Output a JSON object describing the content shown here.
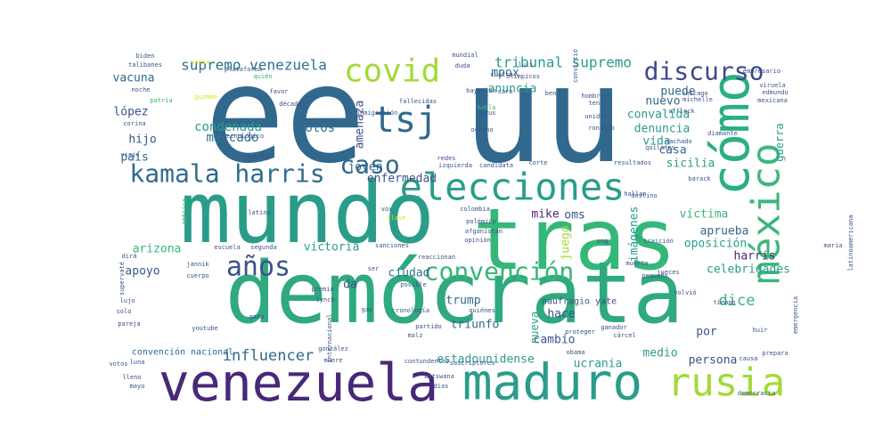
{
  "chart_data": {
    "type": "wordcloud",
    "background": "#ffffff",
    "palette": {
      "purple": "#440154",
      "indigo": "#3b528b",
      "blue": "#31688e",
      "teal": "#21918c",
      "green": "#35b779",
      "lime": "#90d743",
      "yellow": "#d5e21a"
    },
    "words": [
      {
        "text": "ee",
        "weight": 100,
        "color": "#31688e"
      },
      {
        "text": "uu",
        "weight": 88,
        "color": "#31688e"
      },
      {
        "text": "mundo",
        "weight": 62,
        "color": "#2a9d8a"
      },
      {
        "text": "tras",
        "weight": 62,
        "color": "#35b779"
      },
      {
        "text": "demócrata",
        "weight": 60,
        "color": "#2fa97f"
      },
      {
        "text": "venezuela",
        "weight": 38,
        "color": "#482878"
      },
      {
        "text": "maduro",
        "weight": 38,
        "color": "#2a9d8a"
      },
      {
        "text": "cómo",
        "weight": 36,
        "color": "#2ab07f"
      },
      {
        "text": "elecciones",
        "weight": 28,
        "color": "#2a9d8a"
      },
      {
        "text": "méxico",
        "weight": 28,
        "color": "#3db67a"
      },
      {
        "text": "rusia",
        "weight": 28,
        "color": "#a2da37"
      },
      {
        "text": "tsj",
        "weight": 26,
        "color": "#31688e"
      },
      {
        "text": "covid",
        "weight": 24,
        "color": "#a2da37"
      },
      {
        "text": "kamala harris",
        "weight": 20,
        "color": "#2f6b8e"
      },
      {
        "text": "años",
        "weight": 20,
        "color": "#3b528b"
      },
      {
        "text": "caso",
        "weight": 18,
        "color": "#31688e"
      },
      {
        "text": "convención",
        "weight": 18,
        "color": "#35b779"
      },
      {
        "text": "discurso",
        "weight": 18,
        "color": "#3e4989"
      },
      {
        "text": "supremo venezuela",
        "weight": 11,
        "color": "#2c728e"
      },
      {
        "text": "tribunal supremo",
        "weight": 11,
        "color": "#2a9d8a"
      },
      {
        "text": "vacuna",
        "weight": 9,
        "color": "#31688e"
      },
      {
        "text": "lópez",
        "weight": 9,
        "color": "#3b528b"
      },
      {
        "text": "hijo",
        "weight": 9,
        "color": "#3b528b"
      },
      {
        "text": "condenada",
        "weight": 9,
        "color": "#2a9d8a"
      },
      {
        "text": "mercado",
        "weight": 9,
        "color": "#2c728e"
      },
      {
        "text": "fotos",
        "weight": 9,
        "color": "#2c728e"
      },
      {
        "text": "amenaza",
        "weight": 9,
        "color": "#3b528b"
      },
      {
        "text": "mpox",
        "weight": 9,
        "color": "#31688e"
      },
      {
        "text": "anuncia",
        "weight": 9,
        "color": "#2a9d8a"
      },
      {
        "text": "joven",
        "weight": 9,
        "color": "#31688e"
      },
      {
        "text": "país",
        "weight": 9,
        "color": "#31688e"
      },
      {
        "text": "enfermedad",
        "weight": 9,
        "color": "#3b528b"
      },
      {
        "text": "convalida",
        "weight": 9,
        "color": "#2a9d8a"
      },
      {
        "text": "nuevo",
        "weight": 8,
        "color": "#31688e"
      },
      {
        "text": "puede",
        "weight": 8,
        "color": "#31688e"
      },
      {
        "text": "denuncia",
        "weight": 8,
        "color": "#2a9d8a"
      },
      {
        "text": "vida",
        "weight": 8,
        "color": "#2a9d8a"
      },
      {
        "text": "casa",
        "weight": 8,
        "color": "#31688e"
      },
      {
        "text": "sicilia",
        "weight": 8,
        "color": "#2a9d8a"
      },
      {
        "text": "guerra",
        "weight": 8,
        "color": "#2a9d8a"
      },
      {
        "text": "víctima",
        "weight": 9,
        "color": "#3db67a"
      },
      {
        "text": "oms",
        "weight": 9,
        "color": "#3b528b"
      },
      {
        "text": "mike",
        "weight": 8,
        "color": "#482878"
      },
      {
        "text": "imágenes",
        "weight": 8,
        "color": "#2a9d8a"
      },
      {
        "text": "juego",
        "weight": 8,
        "color": "#a2da37"
      },
      {
        "text": "aprueba",
        "weight": 8,
        "color": "#31688e"
      },
      {
        "text": "oposición",
        "weight": 9,
        "color": "#2a9d8a"
      },
      {
        "text": "harris",
        "weight": 8,
        "color": "#482878"
      },
      {
        "text": "celebridades",
        "weight": 8,
        "color": "#2a9d8a"
      },
      {
        "text": "arizona",
        "weight": 9,
        "color": "#35b779"
      },
      {
        "text": "victoria",
        "weight": 9,
        "color": "#2a9d8a"
      },
      {
        "text": "ciudad",
        "weight": 9,
        "color": "#2c728e"
      },
      {
        "text": "apoyo",
        "weight": 9,
        "color": "#3b528b"
      },
      {
        "text": "da",
        "weight": 8,
        "color": "#3b528b"
      },
      {
        "text": "dice",
        "weight": 11,
        "color": "#35b779"
      },
      {
        "text": "trump",
        "weight": 9,
        "color": "#31688e"
      },
      {
        "text": "triunfo",
        "weight": 9,
        "color": "#31688e"
      },
      {
        "text": "hace",
        "weight": 9,
        "color": "#3b528b"
      },
      {
        "text": "cambio",
        "weight": 8,
        "color": "#3b528b"
      },
      {
        "text": "nueva",
        "weight": 8,
        "color": "#2a9d8a"
      },
      {
        "text": "por",
        "weight": 9,
        "color": "#3b528b"
      },
      {
        "text": "influencer",
        "weight": 11,
        "color": "#31688e"
      },
      {
        "text": "estadounidense",
        "weight": 9,
        "color": "#2a9d8a"
      },
      {
        "text": "ucrania",
        "weight": 8,
        "color": "#2a9d8a"
      },
      {
        "text": "medio",
        "weight": 8,
        "color": "#2a9d8a"
      },
      {
        "text": "persona",
        "weight": 8,
        "color": "#3b528b"
      },
      {
        "text": "naufragio yate",
        "weight": 6,
        "color": "#3b528b"
      },
      {
        "text": "convención nacional",
        "weight": 6,
        "color": "#31688e"
      },
      {
        "text": "biden",
        "weight": 4,
        "color": "#3b528b"
      },
      {
        "text": "talibanes",
        "weight": 4,
        "color": "#3b528b"
      },
      {
        "text": "vuelo",
        "weight": 4,
        "color": "#d5e21a"
      },
      {
        "text": "plataforma",
        "weight": 4,
        "color": "#3b528b"
      },
      {
        "text": "quién",
        "weight": 4,
        "color": "#35b779"
      },
      {
        "text": "mundial",
        "weight": 4,
        "color": "#3b528b"
      },
      {
        "text": "duda",
        "weight": 4,
        "color": "#3b528b"
      },
      {
        "text": "olímpicos",
        "weight": 4,
        "color": "#3b528b"
      },
      {
        "text": "noche",
        "weight": 4,
        "color": "#3b528b"
      },
      {
        "text": "patria",
        "weight": 4,
        "color": "#35b779"
      },
      {
        "text": "guzmán",
        "weight": 4,
        "color": "#d5e21a"
      },
      {
        "text": "favor",
        "weight": 4,
        "color": "#3b528b"
      },
      {
        "text": "décadas",
        "weight": 4,
        "color": "#3b528b"
      },
      {
        "text": "inmigración",
        "weight": 4,
        "color": "#3b528b"
      },
      {
        "text": "fallecidas",
        "weight": 4,
        "color": "#3b528b"
      },
      {
        "text": "bayesian",
        "weight": 4,
        "color": "#3b528b"
      },
      {
        "text": "caro",
        "weight": 4,
        "color": "#3b528b"
      },
      {
        "text": "habla",
        "weight": 4,
        "color": "#35b779"
      },
      {
        "text": "virus",
        "weight": 4,
        "color": "#3b528b"
      },
      {
        "text": "océano",
        "weight": 4,
        "color": "#3b528b"
      },
      {
        "text": "ben",
        "weight": 4,
        "color": "#3b528b"
      },
      {
        "text": "hombre",
        "weight": 4,
        "color": "#3b528b"
      },
      {
        "text": "tener",
        "weight": 4,
        "color": "#3b528b"
      },
      {
        "text": "unidos",
        "weight": 4,
        "color": "#3b528b"
      },
      {
        "text": "ronaldo",
        "weight": 4,
        "color": "#3b528b"
      },
      {
        "text": "chicago",
        "weight": 4,
        "color": "#3b528b"
      },
      {
        "text": "michelle",
        "weight": 4,
        "color": "#3b528b"
      },
      {
        "text": "viruela",
        "weight": 4,
        "color": "#3b528b"
      },
      {
        "text": "edmundo",
        "weight": 4,
        "color": "#3b528b"
      },
      {
        "text": "mexicana",
        "weight": 4,
        "color": "#3b528b"
      },
      {
        "text": "empresario",
        "weight": 4,
        "color": "#3b528b"
      },
      {
        "text": "luis",
        "weight": 4,
        "color": "#3b528b"
      },
      {
        "text": "affleck",
        "weight": 4,
        "color": "#3b528b"
      },
      {
        "text": "machado",
        "weight": 4,
        "color": "#3b528b"
      },
      {
        "text": "quilates",
        "weight": 4,
        "color": "#3b528b"
      },
      {
        "text": "diamante",
        "weight": 4,
        "color": "#3b528b"
      },
      {
        "text": "corina",
        "weight": 4,
        "color": "#3b528b"
      },
      {
        "text": "tecnológico",
        "weight": 4,
        "color": "#3b528b"
      },
      {
        "text": "muerto",
        "weight": 4,
        "color": "#3b528b"
      },
      {
        "text": "viaje",
        "weight": 4,
        "color": "#3b528b"
      },
      {
        "text": "redes",
        "weight": 4,
        "color": "#3b528b"
      },
      {
        "text": "izquierda",
        "weight": 4,
        "color": "#3b528b"
      },
      {
        "text": "candidata",
        "weight": 4,
        "color": "#3b528b"
      },
      {
        "text": "corte",
        "weight": 4,
        "color": "#3b528b"
      },
      {
        "text": "resultados",
        "weight": 4,
        "color": "#3b528b"
      },
      {
        "text": "destino",
        "weight": 4,
        "color": "#3b528b"
      },
      {
        "text": "hallan",
        "weight": 4,
        "color": "#3b528b"
      },
      {
        "text": "barack",
        "weight": 4,
        "color": "#3b528b"
      },
      {
        "text": "vox",
        "weight": 4,
        "color": "#3b528b"
      },
      {
        "text": "colombia",
        "weight": 4,
        "color": "#3b528b"
      },
      {
        "text": "latina",
        "weight": 4,
        "color": "#3b528b"
      },
      {
        "text": "clave",
        "weight": 4,
        "color": "#d5e21a"
      },
      {
        "text": "polémico",
        "weight": 4,
        "color": "#3b528b"
      },
      {
        "text": "afganistán",
        "weight": 4,
        "color": "#3b528b"
      },
      {
        "text": "opinión",
        "weight": 4,
        "color": "#3b528b"
      },
      {
        "text": "américa",
        "weight": 4,
        "color": "#35b779"
      },
      {
        "text": "escuela",
        "weight": 4,
        "color": "#3b528b"
      },
      {
        "text": "segunda",
        "weight": 4,
        "color": "#3b528b"
      },
      {
        "text": "sanciones",
        "weight": 4,
        "color": "#3b528b"
      },
      {
        "text": "ong",
        "weight": 4,
        "color": "#3b528b"
      },
      {
        "text": "traición",
        "weight": 4,
        "color": "#3b528b"
      },
      {
        "text": "latinoamericana",
        "weight": 4,
        "color": "#3b528b"
      },
      {
        "text": "dirá",
        "weight": 4,
        "color": "#3b528b"
      },
      {
        "text": "jannik",
        "weight": 4,
        "color": "#3b528b"
      },
      {
        "text": "premio",
        "weight": 4,
        "color": "#3b528b"
      },
      {
        "text": "reaccionan",
        "weight": 4,
        "color": "#3b528b"
      },
      {
        "text": "muerte",
        "weight": 4,
        "color": "#3b528b"
      },
      {
        "text": "pequeño",
        "weight": 4,
        "color": "#3b528b"
      },
      {
        "text": "jueces",
        "weight": 4,
        "color": "#3b528b"
      },
      {
        "text": "supervaté",
        "weight": 4,
        "color": "#3b528b"
      },
      {
        "text": "cuerpo",
        "weight": 4,
        "color": "#3b528b"
      },
      {
        "text": "lynch",
        "weight": 4,
        "color": "#3b528b"
      },
      {
        "text": "gay",
        "weight": 4,
        "color": "#3b528b"
      },
      {
        "text": "posible",
        "weight": 4,
        "color": "#3b528b"
      },
      {
        "text": "lujo",
        "weight": 4,
        "color": "#3b528b"
      },
      {
        "text": "solo",
        "weight": 4,
        "color": "#3b528b"
      },
      {
        "text": "pareja",
        "weight": 4,
        "color": "#3b528b"
      },
      {
        "text": "gaza",
        "weight": 4,
        "color": "#3b528b"
      },
      {
        "text": "youtube",
        "weight": 4,
        "color": "#3b528b"
      },
      {
        "text": "cronología",
        "weight": 4,
        "color": "#3b528b"
      },
      {
        "text": "partido",
        "weight": 4,
        "color": "#3b528b"
      },
      {
        "text": "malz",
        "weight": 4,
        "color": "#3b528b"
      },
      {
        "text": "quiénes",
        "weight": 4,
        "color": "#3b528b"
      },
      {
        "text": "proteger",
        "weight": 4,
        "color": "#3b528b"
      },
      {
        "text": "volvió",
        "weight": 4,
        "color": "#3b528b"
      },
      {
        "text": "tiempo",
        "weight": 4,
        "color": "#3b528b"
      },
      {
        "text": "huir",
        "weight": 4,
        "color": "#3b528b"
      },
      {
        "text": "emergencia",
        "weight": 4,
        "color": "#3b528b"
      },
      {
        "text": "ganador",
        "weight": 4,
        "color": "#3b528b"
      },
      {
        "text": "cárcel",
        "weight": 4,
        "color": "#3b528b"
      },
      {
        "text": "internacional",
        "weight": 4,
        "color": "#3b528b"
      },
      {
        "text": "gonzález",
        "weight": 4,
        "color": "#3b528b"
      },
      {
        "text": "muere",
        "weight": 4,
        "color": "#3b528b"
      },
      {
        "text": "contundentes",
        "weight": 4,
        "color": "#3b528b"
      },
      {
        "text": "obama",
        "weight": 4,
        "color": "#3b528b"
      },
      {
        "text": "suscriptores",
        "weight": 4,
        "color": "#3b528b"
      },
      {
        "text": "causa",
        "weight": 4,
        "color": "#3b528b"
      },
      {
        "text": "prepara",
        "weight": 4,
        "color": "#3b528b"
      },
      {
        "text": "lleno",
        "weight": 4,
        "color": "#3b528b"
      },
      {
        "text": "mayo",
        "weight": 4,
        "color": "#3b528b"
      },
      {
        "text": "luna",
        "weight": 4,
        "color": "#3b528b"
      },
      {
        "text": "votos",
        "weight": 4,
        "color": "#3b528b"
      },
      {
        "text": "días",
        "weight": 4,
        "color": "#3b528b"
      },
      {
        "text": "botswana",
        "weight": 4,
        "color": "#3b528b"
      },
      {
        "text": "democracia",
        "weight": 4,
        "color": "#3b528b"
      },
      {
        "text": "cuatro",
        "weight": 4,
        "color": "#3b528b"
      },
      {
        "text": "convirtió",
        "weight": 4,
        "color": "#3b528b"
      },
      {
        "text": "ser",
        "weight": 4,
        "color": "#3b528b"
      },
      {
        "text": "maria",
        "weight": 4,
        "color": "#3b528b"
      }
    ]
  }
}
